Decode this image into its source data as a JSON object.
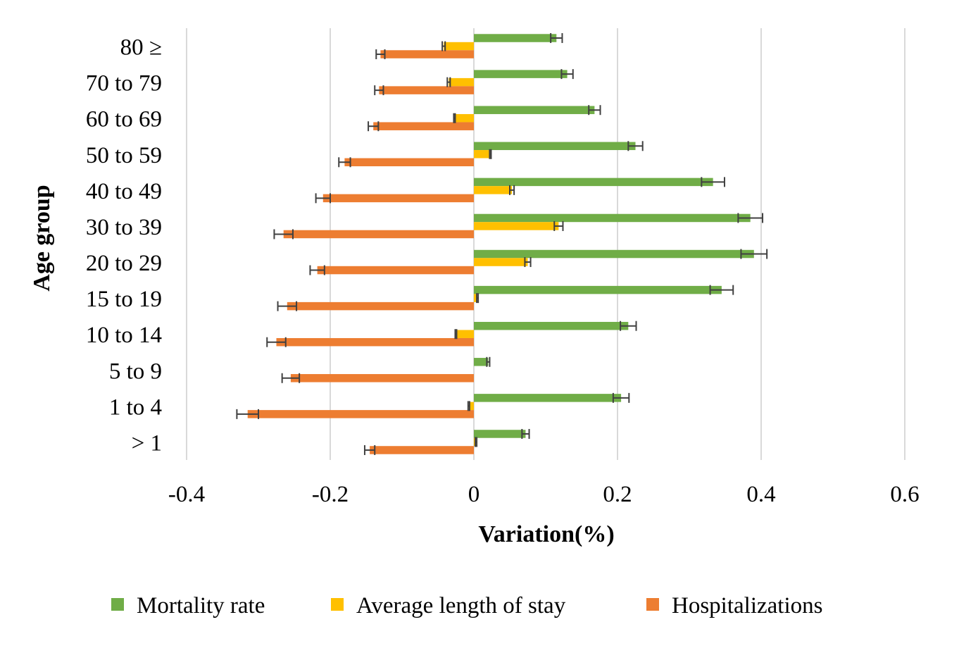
{
  "chart_data": {
    "type": "bar",
    "orientation": "horizontal",
    "xlabel": "Variation(%)",
    "ylabel": "Age group",
    "xlim": [
      -0.4,
      0.6
    ],
    "xticks": [
      "-0.4",
      "-0.2",
      "0",
      "0.2",
      "0.4",
      "0.6"
    ],
    "grid": "vertical",
    "legend": "bottom",
    "categories": [
      "80 ≥",
      "70 to 79",
      "60 to 69",
      "50 to 59",
      "40 to 49",
      "30 to 39",
      "20 to 29",
      "15 to 19",
      "10 to 14",
      "5 to 9",
      "1 to 4",
      "> 1"
    ],
    "series": [
      {
        "name": "Mortality rate",
        "color": "#70AD47",
        "values": [
          0.115,
          0.13,
          0.168,
          0.225,
          0.333,
          0.385,
          0.39,
          0.345,
          0.215,
          0.02,
          0.205,
          0.072
        ],
        "errors": [
          0.008,
          0.008,
          0.008,
          0.01,
          0.016,
          0.017,
          0.018,
          0.016,
          0.011,
          0.002,
          0.011,
          0.005
        ]
      },
      {
        "name": "Average length of stay",
        "color": "#FFC000",
        "values": [
          -0.042,
          -0.035,
          -0.027,
          0.023,
          0.053,
          0.118,
          0.075,
          0.005,
          -0.025,
          0.0,
          -0.007,
          0.003
        ],
        "errors": [
          0.002,
          0.002,
          0.001,
          0.001,
          0.003,
          0.006,
          0.004,
          0.001,
          0.001,
          0.0,
          0.001,
          0.001
        ]
      },
      {
        "name": "Hospitalizations",
        "color": "#ED7D31",
        "values": [
          -0.13,
          -0.132,
          -0.14,
          -0.18,
          -0.21,
          -0.265,
          -0.218,
          -0.26,
          -0.275,
          -0.255,
          -0.315,
          -0.145
        ],
        "errors": [
          0.006,
          0.006,
          0.007,
          0.008,
          0.01,
          0.013,
          0.01,
          0.013,
          0.013,
          0.012,
          0.015,
          0.007
        ]
      }
    ]
  }
}
